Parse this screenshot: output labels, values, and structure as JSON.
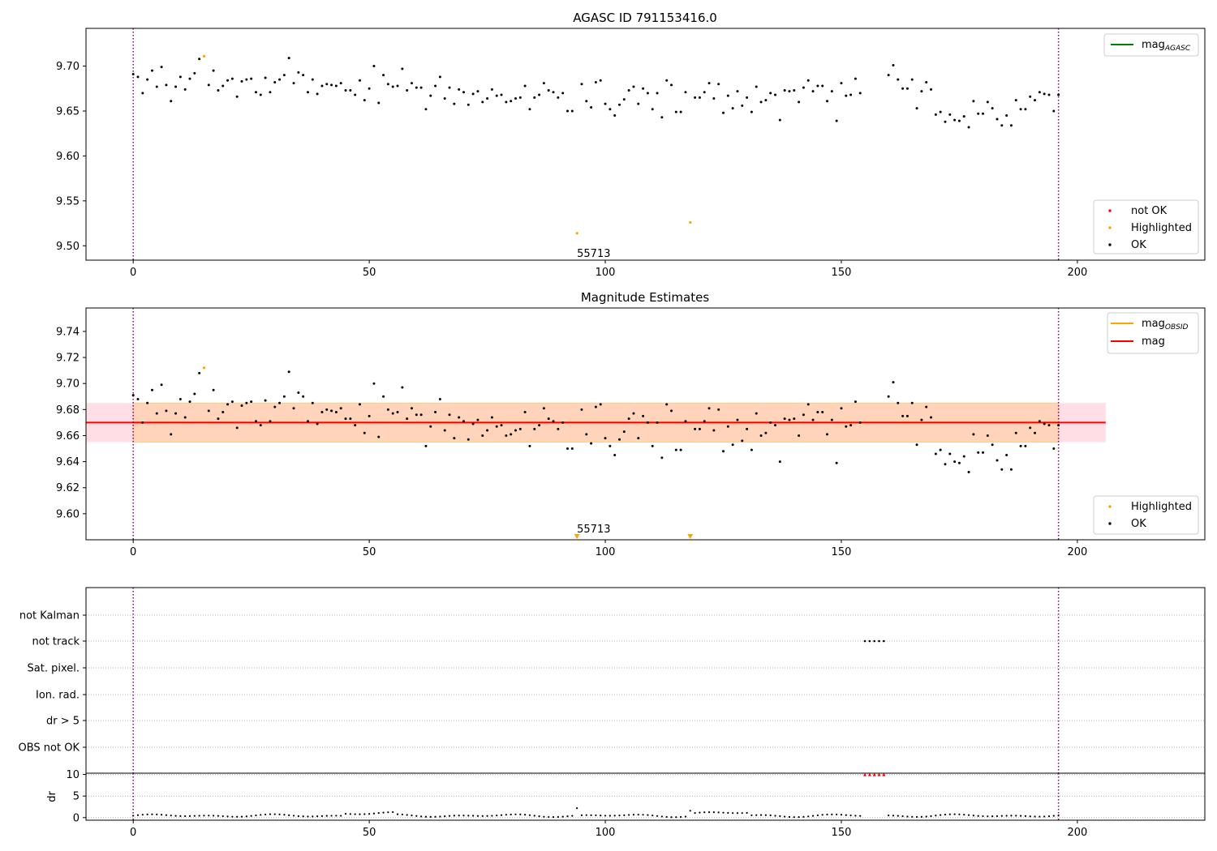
{
  "chart_data": [
    {
      "type": "scatter",
      "title": "AGASC ID 791153416.0",
      "xlim": [
        -10,
        227
      ],
      "ylim": [
        9.484,
        9.742
      ],
      "xticks": [
        0,
        50,
        100,
        150,
        200
      ],
      "yticks": [
        9.5,
        9.55,
        9.6,
        9.65,
        9.7
      ],
      "ytick_labels": [
        "9.50",
        "9.55",
        "9.60",
        "9.65",
        "9.70"
      ],
      "vlines": [
        0,
        196
      ],
      "annotations": [
        {
          "text": "55713",
          "x": 94,
          "y": 9.486
        }
      ],
      "legend_upper": {
        "position": "upper right",
        "entries": [
          {
            "label": "mag",
            "sub": "AGASC",
            "color": "#008000",
            "kind": "line"
          }
        ]
      },
      "legend_lower": {
        "position": "lower right",
        "entries": [
          {
            "label": "not OK",
            "color": "#ff0000",
            "kind": "dot"
          },
          {
            "label": "Highlighted",
            "color": "#ffa500",
            "kind": "dot"
          },
          {
            "label": "OK",
            "color": "#000000",
            "kind": "dot"
          }
        ]
      },
      "series": [
        {
          "name": "OK",
          "color": "#000000",
          "x": [],
          "y": []
        },
        {
          "name": "Highlighted",
          "color": "#ffa500",
          "points": [
            [
              15,
              9.711
            ],
            [
              94,
              9.514
            ],
            [
              118,
              9.526
            ]
          ]
        }
      ]
    },
    {
      "type": "scatter",
      "title": "Magnitude Estimates",
      "xlim": [
        -10,
        227
      ],
      "ylim": [
        9.58,
        9.758
      ],
      "xticks": [
        0,
        50,
        100,
        150,
        200
      ],
      "yticks": [
        9.6,
        9.62,
        9.64,
        9.66,
        9.68,
        9.7,
        9.72,
        9.74
      ],
      "ytick_labels": [
        "9.60",
        "9.62",
        "9.64",
        "9.66",
        "9.68",
        "9.70",
        "9.72",
        "9.74"
      ],
      "vlines": [
        0,
        196
      ],
      "mag_band": {
        "center": 9.67,
        "low": 9.655,
        "high": 9.685,
        "x": [
          -10,
          206
        ]
      },
      "obsid_band": {
        "low": 9.655,
        "high": 9.685,
        "x": [
          0,
          196
        ]
      },
      "annotations": [
        {
          "text": "55713",
          "x": 94,
          "y": 9.584
        }
      ],
      "lower_limit_markers": [
        94,
        118
      ],
      "legend_upper": {
        "position": "upper right",
        "entries": [
          {
            "label": "mag",
            "sub": "OBSID",
            "color": "#ffa500",
            "kind": "line"
          },
          {
            "label": "mag",
            "sub": "",
            "color": "#ff0000",
            "kind": "line"
          }
        ]
      },
      "legend_lower": {
        "position": "lower right",
        "entries": [
          {
            "label": "Highlighted",
            "color": "#ffa500",
            "kind": "dot"
          },
          {
            "label": "OK",
            "color": "#000000",
            "kind": "dot"
          }
        ]
      },
      "series": [
        {
          "name": "OK",
          "color": "#000000",
          "x": [],
          "y": []
        },
        {
          "name": "Highlighted",
          "color": "#ffa500",
          "points": [
            [
              15,
              9.712
            ]
          ]
        }
      ]
    },
    {
      "type": "scatter",
      "xlim": [
        -10,
        227
      ],
      "categories": [
        "not Kalman",
        "not track",
        "Sat. pixel.",
        "Ion. rad.",
        "dr > 5",
        "OBS not OK"
      ],
      "vlines": [
        0,
        196
      ],
      "flags": {
        "not track": [
          155,
          156,
          157,
          158,
          159
        ]
      }
    },
    {
      "type": "scatter",
      "ylabel": "dr",
      "xlim": [
        -10,
        227
      ],
      "ylim": [
        -0.6,
        10.3
      ],
      "yticks": [
        0,
        5,
        10
      ],
      "xticks": [
        0,
        50,
        100,
        150,
        200
      ],
      "vlines": [
        0,
        196
      ],
      "clipped_markers": {
        "color": "#ff0000",
        "x": [
          155,
          156,
          157,
          158,
          159
        ],
        "y": 10
      },
      "series": [
        {
          "name": "dr",
          "color": "#000000",
          "x": [],
          "y": []
        }
      ]
    }
  ]
}
